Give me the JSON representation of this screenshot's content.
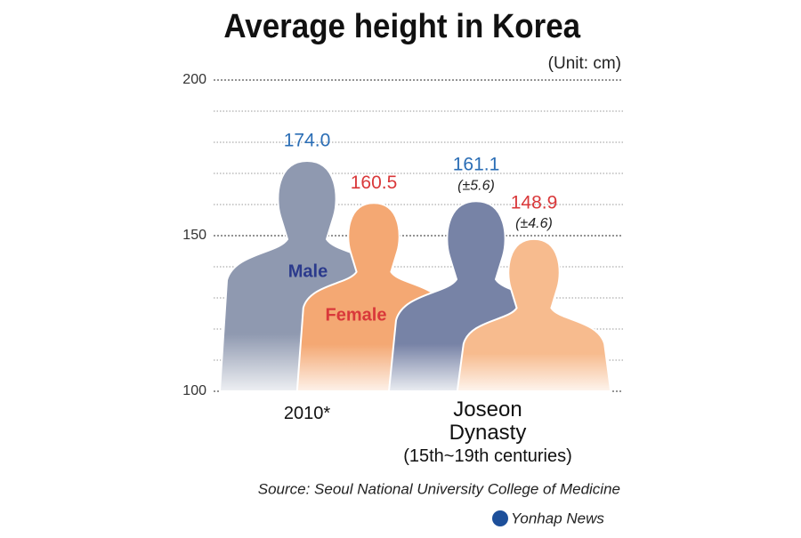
{
  "chart_data": {
    "type": "silhouette",
    "title": "Average height in Korea",
    "unit": "(Unit: cm)",
    "categories": [
      "2010*",
      "Joseon Dynasty"
    ],
    "category_note": "(15th~19th centuries)",
    "series": [
      {
        "name": "Male",
        "color": "#8f99b0",
        "label_color": "#2a6db5",
        "name_color": "#2b3a8c",
        "values": [
          174.0,
          161.1
        ],
        "value_labels": [
          "174.0",
          "161.1"
        ],
        "errors": [
          null,
          5.6
        ],
        "error_labels": [
          null,
          "(±5.6)"
        ]
      },
      {
        "name": "Female",
        "color": "#f4a873",
        "label_color": "#d9383a",
        "name_color": "#d9383a",
        "values": [
          160.5,
          148.9
        ],
        "errors": [
          null,
          4.6
        ],
        "error_labels": [
          null,
          "(±4.6)"
        ]
      }
    ],
    "second_colors": [
      "#7783a6",
      "#f7bb8e"
    ],
    "ylim": [
      100,
      200
    ],
    "yticks": [
      100,
      150,
      200
    ],
    "minor_yticks": [
      110,
      120,
      130,
      140,
      160,
      170,
      180,
      190
    ],
    "grid": true,
    "source": "Source: Seoul National University College of Medicine",
    "credit": "Yonhap News"
  }
}
